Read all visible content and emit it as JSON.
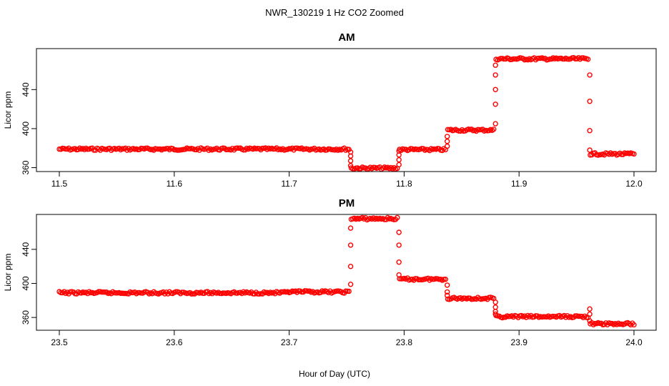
{
  "chart_data": {
    "title": "NWR_130219  1 Hz CO2 Zoomed",
    "xlabel": "Hour of Day (UTC)",
    "series_color": "#ff0000",
    "panels": [
      {
        "title": "AM",
        "type": "scatter",
        "ylabel": "Licor ppm",
        "xlim": [
          11.5,
          12.0
        ],
        "ylim": [
          356,
          482
        ],
        "xticks": [
          11.5,
          11.6,
          11.7,
          11.8,
          11.9,
          12.0
        ],
        "xtick_labels": [
          "11.5",
          "11.6",
          "11.7",
          "11.8",
          "11.9",
          "12.0"
        ],
        "yticks": [
          360,
          400,
          440
        ],
        "ytick_labels": [
          "360",
          "400",
          "440"
        ],
        "segments": [
          {
            "x": [
              11.5,
              11.752
            ],
            "y": 379
          },
          {
            "x": [
              11.754,
              11.794
            ],
            "y": 359.5
          },
          {
            "x": [
              11.796,
              11.836
            ],
            "y": 378.5
          },
          {
            "x": [
              11.838,
              11.878
            ],
            "y": 398.5
          },
          {
            "x": [
              11.88,
              11.96
            ],
            "y": 471.5
          },
          {
            "x": [
              11.962,
              12.0
            ],
            "y": 374
          }
        ],
        "transitions": [
          {
            "x": 11.7535,
            "y": [
              376,
              372,
              367,
              362
            ]
          },
          {
            "x": 11.7955,
            "y": [
              363,
              368,
              373,
              377
            ]
          },
          {
            "x": 11.8375,
            "y": [
              382,
              387,
              392
            ]
          },
          {
            "x": 11.8795,
            "y": [
              405,
              425,
              440,
              455,
              465
            ]
          },
          {
            "x": 11.9615,
            "y": [
              455,
              428,
              398,
              378
            ]
          }
        ]
      },
      {
        "title": "PM",
        "type": "scatter",
        "ylabel": "Licor ppm",
        "xlim": [
          23.5,
          24.0
        ],
        "ylim": [
          345,
          481
        ],
        "xticks": [
          23.5,
          23.6,
          23.7,
          23.8,
          23.9,
          24.0
        ],
        "xtick_labels": [
          "23.5",
          "23.6",
          "23.7",
          "23.8",
          "23.9",
          "24.0"
        ],
        "yticks": [
          360,
          400,
          440
        ],
        "ytick_labels": [
          "360",
          "400",
          "440"
        ],
        "segments": [
          {
            "x": [
              23.5,
              23.7
            ],
            "y": 389
          },
          {
            "x": [
              23.7,
              23.752
            ],
            "y": 390
          },
          {
            "x": [
              23.754,
              23.794
            ],
            "y": 476
          },
          {
            "x": [
              23.796,
              23.836
            ],
            "y": 405
          },
          {
            "x": [
              23.838,
              23.878
            ],
            "y": 382.5
          },
          {
            "x": [
              23.88,
              23.96
            ],
            "y": 361
          },
          {
            "x": [
              23.962,
              24.0
            ],
            "y": 352.5
          }
        ],
        "transitions": [
          {
            "x": 23.7535,
            "y": [
              399,
              420,
              445,
              465
            ]
          },
          {
            "x": 23.7955,
            "y": [
              460,
              445,
              425,
              410
            ]
          },
          {
            "x": 23.8375,
            "y": [
              398,
              390,
              386
            ]
          },
          {
            "x": 23.8795,
            "y": [
              378,
              372,
              367,
              364
            ]
          },
          {
            "x": 23.9615,
            "y": [
              370,
              364,
              356
            ]
          }
        ]
      }
    ]
  }
}
